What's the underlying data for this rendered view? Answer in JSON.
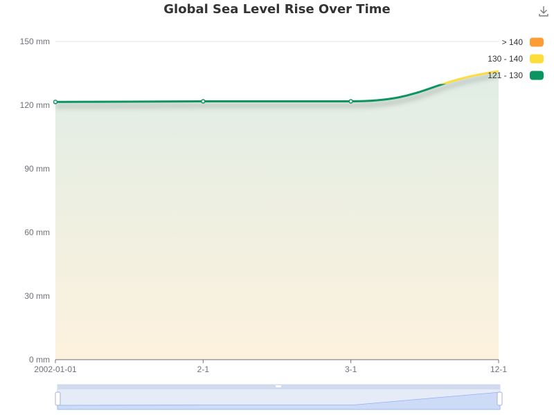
{
  "chart_data": {
    "type": "line",
    "title": "Global Sea Level Rise Over Time",
    "x": [
      "2002-01-01",
      "2-1",
      "3-1",
      "12-1"
    ],
    "series": [
      {
        "values": [
          121.5,
          121.8,
          121.8,
          136
        ]
      }
    ],
    "y_tick_labels": [
      "0 mm",
      "30 mm",
      "60 mm",
      "90 mm",
      "120 mm",
      "150 mm"
    ],
    "y_ticks": [
      0,
      30,
      60,
      90,
      120,
      150
    ],
    "ylim": [
      0,
      150
    ],
    "grid": true,
    "legend": {
      "placement": "top-right",
      "items": [
        {
          "label": "> 140",
          "color": "#fd9c35"
        },
        {
          "label": "130 - 140",
          "color": "#fddd3a"
        },
        {
          "label": "121 - 130",
          "color": "#0a9460"
        }
      ]
    },
    "visual_map_pieces": [
      {
        "min": 140,
        "color": "#fd9c35"
      },
      {
        "min": 130,
        "max": 140,
        "color": "#fddd3a"
      },
      {
        "min": 121,
        "max": 130,
        "color": "#0a9460"
      }
    ],
    "area_gradient": {
      "top": "#e0ede5",
      "bottom": "#fdf2de"
    },
    "datazoom": true
  }
}
